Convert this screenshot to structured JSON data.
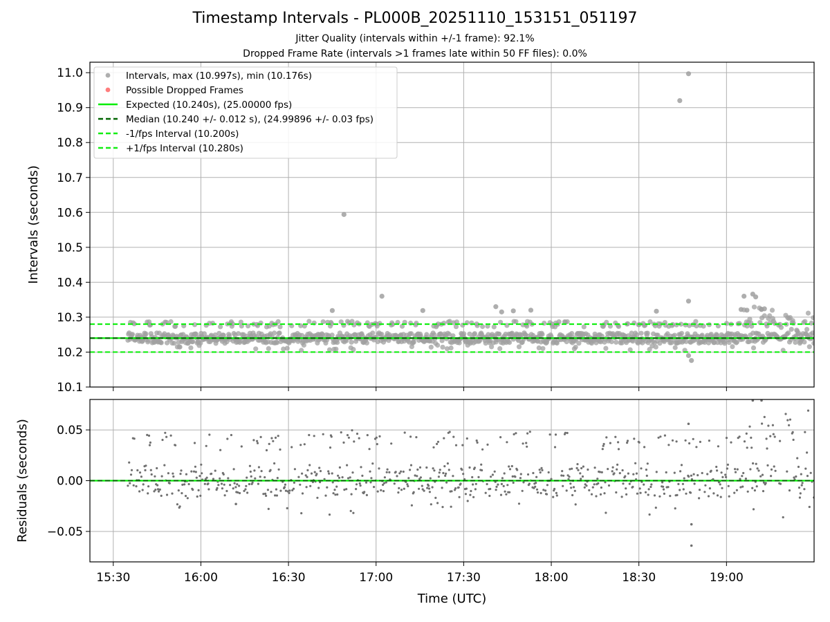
{
  "header": {
    "title": "Timestamp Intervals - PL000B_20251110_153151_051197",
    "subtitle_1": "Jitter Quality (intervals within +/-1 frame): 92.1%",
    "subtitle_2": "Dropped Frame Rate (intervals >1 frames late within 50 FF files): 0.0%"
  },
  "colors": {
    "points": "#a0a0a0",
    "residual_points": "#707070",
    "dropped": "#ff6666",
    "expected": "#00ee00",
    "median": "#006400",
    "fps_bounds": "#11ee11",
    "grid": "#b0b0b0"
  },
  "chart_data": [
    {
      "type": "scatter",
      "panel": "intervals",
      "ylabel": "Intervals (seconds)",
      "ylim": [
        10.1,
        11.03
      ],
      "yticks": [
        "10.1",
        "10.2",
        "10.3",
        "10.4",
        "10.5",
        "10.6",
        "10.7",
        "10.8",
        "10.9",
        "11.0"
      ],
      "grid": true,
      "legend_position": "upper-left",
      "legend": [
        "Intervals, max (10.997s), min (10.176s)",
        "Possible Dropped Frames",
        "Expected (10.240s), (25.00000 fps)",
        "Median (10.240 +/- 0.012 s), (24.99896 +/- 0.03 fps)",
        "-1/fps Interval (10.200s)",
        "+1/fps Interval (10.280s)"
      ],
      "reference_lines": {
        "expected": 10.24,
        "median": 10.24,
        "minus_one_fps": 10.2,
        "plus_one_fps": 10.28
      },
      "series": [
        {
          "name": "Intervals, max (10.997s), min (10.176s)",
          "baseline_band": [
            10.225,
            10.255
          ],
          "points": [
            [
              "16:49",
              10.594
            ],
            [
              "18:44",
              10.92
            ],
            [
              "18:47",
              10.997
            ],
            [
              "16:45",
              10.319
            ],
            [
              "17:02",
              10.36
            ],
            [
              "17:16",
              10.319
            ],
            [
              "17:41",
              10.33
            ],
            [
              "17:43",
              10.315
            ],
            [
              "17:47",
              10.318
            ],
            [
              "17:53",
              10.32
            ],
            [
              "18:36",
              10.317
            ],
            [
              "18:47",
              10.346
            ],
            [
              "18:47",
              10.19
            ],
            [
              "18:48",
              10.176
            ],
            [
              "19:06",
              10.36
            ],
            [
              "19:09",
              10.366
            ],
            [
              "19:10",
              10.358
            ],
            [
              "19:12",
              10.322
            ],
            [
              "19:13",
              10.324
            ],
            [
              "19:05",
              10.322
            ],
            [
              "19:07",
              10.32
            ]
          ]
        },
        {
          "name": "Possible Dropped Frames",
          "points": []
        }
      ]
    },
    {
      "type": "scatter",
      "panel": "residuals",
      "ylabel": "Residuals (seconds)",
      "xlabel": "Time (UTC)",
      "ylim": [
        -0.08,
        0.08
      ],
      "yticks": [
        "−0.05",
        "0.00",
        "0.05"
      ],
      "xticks": [
        "15:30",
        "16:00",
        "16:30",
        "17:00",
        "17:30",
        "18:00",
        "18:30",
        "19:00"
      ],
      "xlim": [
        "15:22",
        "19:30"
      ],
      "grid": true,
      "reference_lines": {
        "expected": 0.0,
        "median": 0.0
      },
      "series": [
        {
          "baseline_band": [
            -0.015,
            0.015
          ],
          "points": [
            [
              "16:12",
              -0.023
            ],
            [
              "18:48",
              -0.043
            ],
            [
              "18:48",
              -0.064
            ],
            [
              "18:47",
              0.056
            ],
            [
              "19:09",
              0.079
            ],
            [
              "19:12",
              0.079
            ]
          ]
        }
      ]
    }
  ]
}
